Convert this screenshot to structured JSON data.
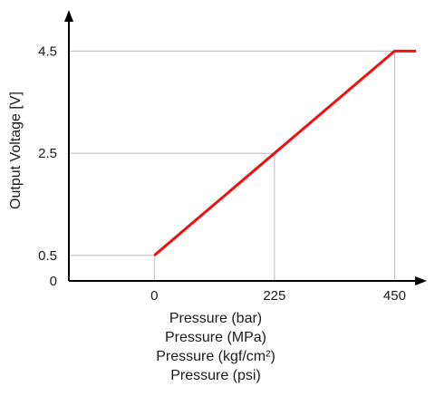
{
  "chart_data": {
    "type": "line",
    "title": "",
    "ylabel": "Output Voltage [V]",
    "xlabels": [
      "Pressure (bar)",
      "Pressure (MPa)",
      "Pressure (kgf/cm²)",
      "Pressure (psi)"
    ],
    "x_ticks": [
      {
        "value": 0,
        "label": "0"
      },
      {
        "value": 225,
        "label": "225"
      },
      {
        "value": 450,
        "label": "450"
      }
    ],
    "y_ticks": [
      {
        "value": 0,
        "label": "0"
      },
      {
        "value": 0.5,
        "label": "0.5"
      },
      {
        "value": 2.5,
        "label": "2.5"
      },
      {
        "value": 4.5,
        "label": "4.5"
      }
    ],
    "xlim": [
      -160,
      490
    ],
    "ylim": [
      0,
      5.5
    ],
    "grid": true,
    "series": [
      {
        "color": "#ee1111",
        "x": [
          0,
          450,
          490
        ],
        "y": [
          0.5,
          4.5,
          4.5
        ]
      }
    ]
  },
  "colors": {
    "axis": "#000000",
    "grid": "#bbbbbb",
    "line": "#ee1111"
  }
}
